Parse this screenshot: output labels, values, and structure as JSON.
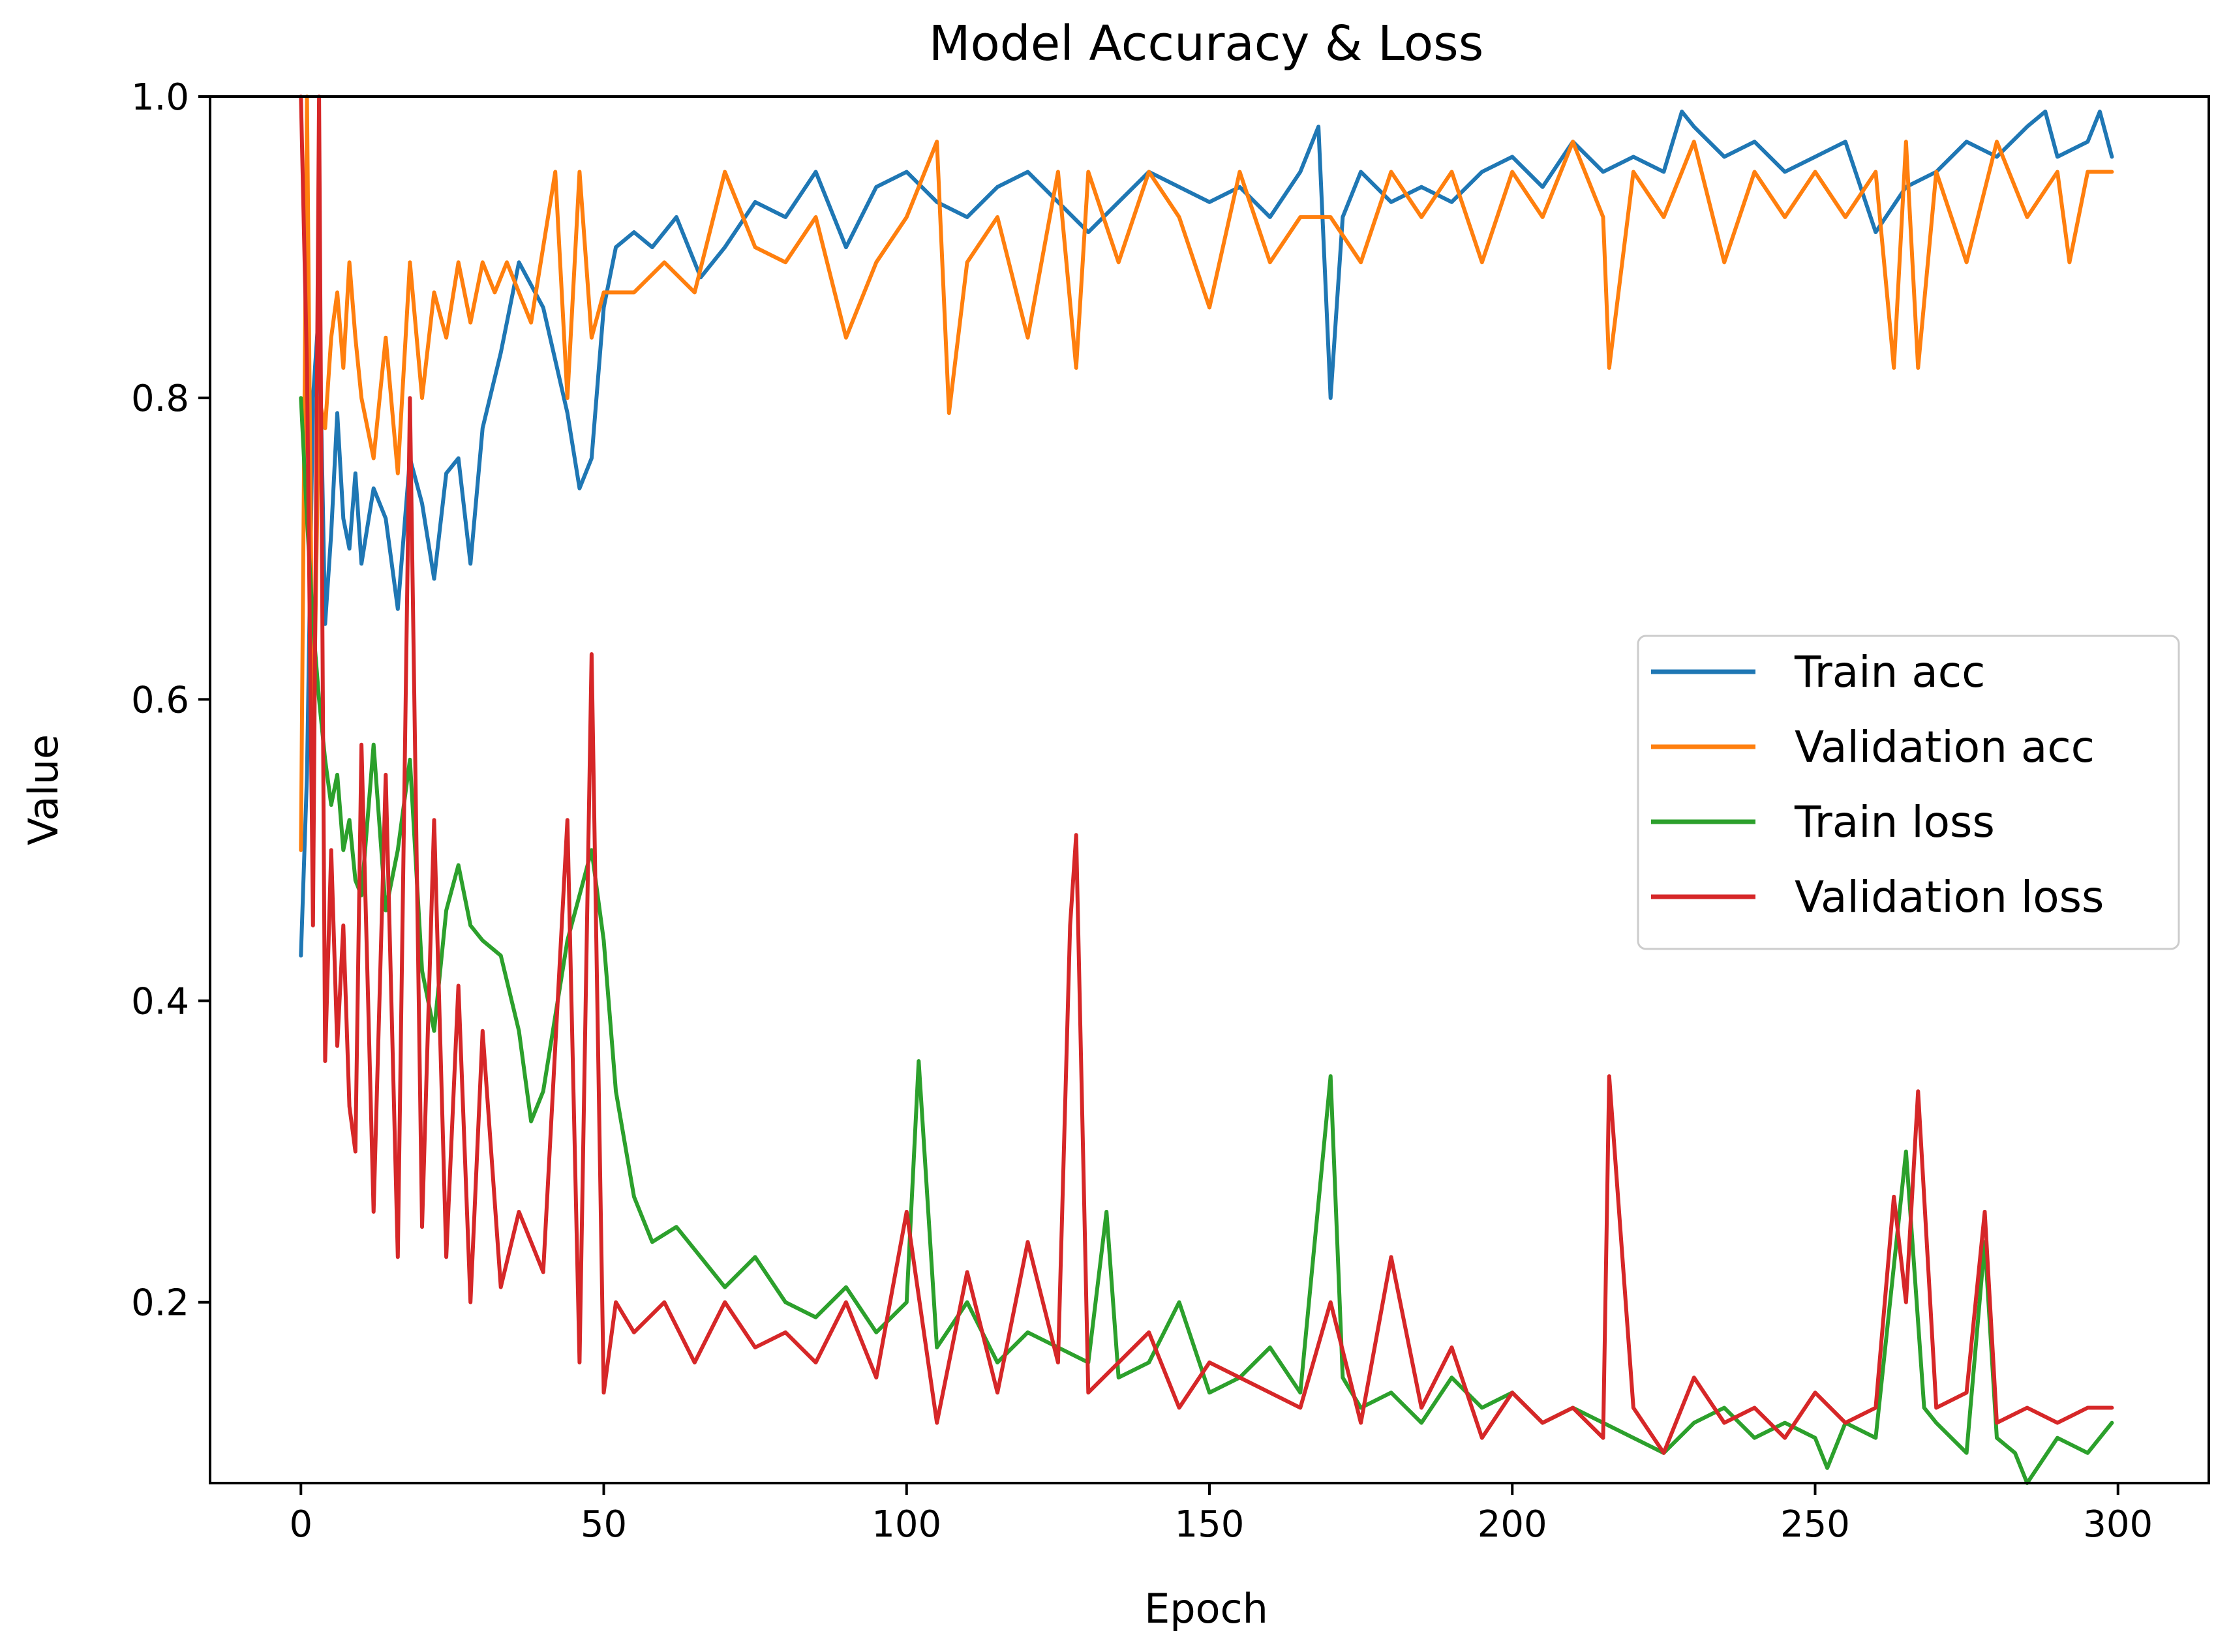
{
  "chart_data": {
    "type": "line",
    "title": "Model Accuracy & Loss",
    "xlabel": "Epoch",
    "ylabel": "Value",
    "xlim": [
      -15,
      315
    ],
    "ylim": [
      0.08,
      1.0
    ],
    "xticks": [
      0,
      50,
      100,
      150,
      200,
      250,
      300
    ],
    "yticks": [
      0.2,
      0.4,
      0.6,
      0.8,
      1.0
    ],
    "xtick_labels": [
      "0",
      "50",
      "100",
      "150",
      "200",
      "250",
      "300"
    ],
    "ytick_labels": [
      "0.2",
      "0.4",
      "0.6",
      "0.8",
      "1.0"
    ],
    "grid": false,
    "legend_position": "center-right",
    "series": [
      {
        "name": "Train acc",
        "color": "#1f77b4",
        "x": [
          0,
          1,
          2,
          3,
          4,
          5,
          6,
          7,
          8,
          9,
          10,
          12,
          14,
          16,
          18,
          20,
          22,
          24,
          26,
          28,
          30,
          33,
          36,
          40,
          44,
          46,
          48,
          50,
          52,
          55,
          58,
          62,
          66,
          70,
          75,
          80,
          85,
          90,
          95,
          100,
          105,
          110,
          115,
          120,
          125,
          130,
          135,
          140,
          145,
          150,
          155,
          160,
          165,
          168,
          170,
          172,
          175,
          180,
          185,
          190,
          195,
          200,
          205,
          210,
          215,
          220,
          225,
          228,
          230,
          235,
          240,
          245,
          250,
          255,
          260,
          265,
          270,
          275,
          280,
          285,
          288,
          290,
          295,
          297,
          299
        ],
        "y": [
          0.43,
          0.55,
          0.8,
          0.86,
          0.65,
          0.71,
          0.79,
          0.72,
          0.7,
          0.75,
          0.69,
          0.74,
          0.72,
          0.66,
          0.76,
          0.73,
          0.68,
          0.75,
          0.76,
          0.69,
          0.78,
          0.83,
          0.89,
          0.86,
          0.79,
          0.74,
          0.76,
          0.86,
          0.9,
          0.91,
          0.9,
          0.92,
          0.88,
          0.9,
          0.93,
          0.92,
          0.95,
          0.9,
          0.94,
          0.95,
          0.93,
          0.92,
          0.94,
          0.95,
          0.93,
          0.91,
          0.93,
          0.95,
          0.94,
          0.93,
          0.94,
          0.92,
          0.95,
          0.98,
          0.8,
          0.92,
          0.95,
          0.93,
          0.94,
          0.93,
          0.95,
          0.96,
          0.94,
          0.97,
          0.95,
          0.96,
          0.95,
          0.99,
          0.98,
          0.96,
          0.97,
          0.95,
          0.96,
          0.97,
          0.91,
          0.94,
          0.95,
          0.97,
          0.96,
          0.98,
          0.99,
          0.96,
          0.97,
          0.99,
          0.96
        ]
      },
      {
        "name": "Validation acc",
        "color": "#ff7f0e",
        "x": [
          0,
          1,
          2,
          3,
          4,
          5,
          6,
          7,
          8,
          9,
          10,
          12,
          14,
          16,
          18,
          20,
          22,
          24,
          26,
          28,
          30,
          32,
          34,
          38,
          42,
          44,
          46,
          48,
          50,
          55,
          60,
          65,
          70,
          75,
          80,
          85,
          90,
          95,
          100,
          105,
          107,
          110,
          115,
          120,
          125,
          128,
          130,
          135,
          140,
          145,
          150,
          155,
          160,
          165,
          170,
          175,
          180,
          185,
          190,
          195,
          200,
          205,
          210,
          215,
          216,
          220,
          225,
          230,
          235,
          240,
          245,
          250,
          255,
          260,
          263,
          265,
          267,
          270,
          275,
          280,
          285,
          290,
          292,
          295,
          299
        ],
        "y": [
          0.5,
          1.0,
          0.55,
          0.8,
          0.78,
          0.84,
          0.87,
          0.82,
          0.89,
          0.84,
          0.8,
          0.76,
          0.84,
          0.75,
          0.89,
          0.8,
          0.87,
          0.84,
          0.89,
          0.85,
          0.89,
          0.87,
          0.89,
          0.85,
          0.95,
          0.8,
          0.95,
          0.84,
          0.87,
          0.87,
          0.89,
          0.87,
          0.95,
          0.9,
          0.89,
          0.92,
          0.84,
          0.89,
          0.92,
          0.97,
          0.79,
          0.89,
          0.92,
          0.84,
          0.95,
          0.82,
          0.95,
          0.89,
          0.95,
          0.92,
          0.86,
          0.95,
          0.89,
          0.92,
          0.92,
          0.89,
          0.95,
          0.92,
          0.95,
          0.89,
          0.95,
          0.92,
          0.97,
          0.92,
          0.82,
          0.95,
          0.92,
          0.97,
          0.89,
          0.95,
          0.92,
          0.95,
          0.92,
          0.95,
          0.82,
          0.97,
          0.82,
          0.95,
          0.89,
          0.97,
          0.92,
          0.95,
          0.89,
          0.95,
          0.95
        ]
      },
      {
        "name": "Train loss",
        "color": "#2ca02c",
        "x": [
          0,
          1,
          2,
          3,
          4,
          5,
          6,
          7,
          8,
          9,
          10,
          12,
          14,
          16,
          18,
          20,
          22,
          24,
          26,
          28,
          30,
          33,
          36,
          38,
          40,
          44,
          48,
          50,
          52,
          55,
          58,
          62,
          66,
          70,
          75,
          80,
          85,
          90,
          95,
          100,
          102,
          105,
          110,
          115,
          120,
          125,
          130,
          133,
          135,
          140,
          145,
          150,
          155,
          160,
          165,
          170,
          172,
          175,
          180,
          185,
          190,
          195,
          200,
          205,
          210,
          215,
          220,
          225,
          230,
          235,
          240,
          245,
          250,
          252,
          255,
          260,
          265,
          268,
          270,
          275,
          278,
          280,
          283,
          285,
          290,
          295,
          299
        ],
        "y": [
          0.8,
          0.72,
          0.65,
          0.6,
          0.56,
          0.53,
          0.55,
          0.5,
          0.52,
          0.48,
          0.47,
          0.57,
          0.46,
          0.5,
          0.56,
          0.42,
          0.38,
          0.46,
          0.49,
          0.45,
          0.44,
          0.43,
          0.38,
          0.32,
          0.34,
          0.44,
          0.5,
          0.44,
          0.34,
          0.27,
          0.24,
          0.25,
          0.23,
          0.21,
          0.23,
          0.2,
          0.19,
          0.21,
          0.18,
          0.2,
          0.36,
          0.17,
          0.2,
          0.16,
          0.18,
          0.17,
          0.16,
          0.26,
          0.15,
          0.16,
          0.2,
          0.14,
          0.15,
          0.17,
          0.14,
          0.35,
          0.15,
          0.13,
          0.14,
          0.12,
          0.15,
          0.13,
          0.14,
          0.12,
          0.13,
          0.12,
          0.11,
          0.1,
          0.12,
          0.13,
          0.11,
          0.12,
          0.11,
          0.09,
          0.12,
          0.11,
          0.3,
          0.13,
          0.12,
          0.1,
          0.24,
          0.11,
          0.1,
          0.08,
          0.11,
          0.1,
          0.12
        ]
      },
      {
        "name": "Validation loss",
        "color": "#d62728",
        "x": [
          0,
          1,
          2,
          3,
          4,
          5,
          6,
          7,
          8,
          9,
          10,
          12,
          14,
          16,
          18,
          20,
          22,
          24,
          26,
          28,
          30,
          33,
          36,
          40,
          44,
          46,
          48,
          50,
          52,
          55,
          60,
          65,
          70,
          75,
          80,
          85,
          90,
          95,
          100,
          105,
          110,
          115,
          120,
          125,
          127,
          128,
          130,
          135,
          140,
          145,
          150,
          155,
          160,
          165,
          170,
          175,
          180,
          185,
          190,
          195,
          200,
          205,
          210,
          215,
          216,
          220,
          225,
          230,
          235,
          240,
          245,
          250,
          255,
          260,
          263,
          265,
          267,
          270,
          275,
          278,
          280,
          285,
          290,
          295,
          299
        ],
        "y": [
          1.0,
          0.82,
          0.45,
          1.0,
          0.36,
          0.5,
          0.37,
          0.45,
          0.33,
          0.3,
          0.57,
          0.26,
          0.55,
          0.23,
          0.8,
          0.25,
          0.52,
          0.23,
          0.41,
          0.2,
          0.38,
          0.21,
          0.26,
          0.22,
          0.52,
          0.16,
          0.63,
          0.14,
          0.2,
          0.18,
          0.2,
          0.16,
          0.2,
          0.17,
          0.18,
          0.16,
          0.2,
          0.15,
          0.26,
          0.12,
          0.22,
          0.14,
          0.24,
          0.16,
          0.45,
          0.51,
          0.14,
          0.16,
          0.18,
          0.13,
          0.16,
          0.15,
          0.14,
          0.13,
          0.2,
          0.12,
          0.23,
          0.13,
          0.17,
          0.11,
          0.14,
          0.12,
          0.13,
          0.11,
          0.35,
          0.13,
          0.1,
          0.15,
          0.12,
          0.13,
          0.11,
          0.14,
          0.12,
          0.13,
          0.27,
          0.2,
          0.34,
          0.13,
          0.14,
          0.26,
          0.12,
          0.13,
          0.12,
          0.13,
          0.13
        ]
      }
    ]
  }
}
